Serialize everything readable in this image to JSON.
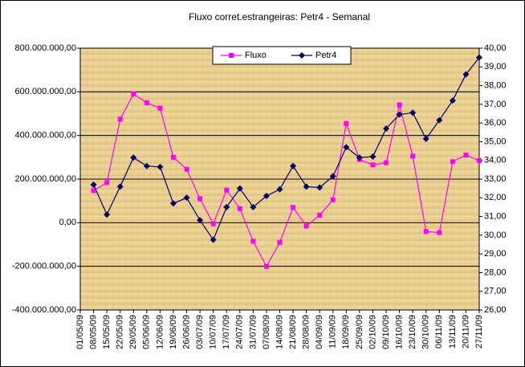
{
  "chart_data": {
    "type": "line",
    "title": "Fluxo corret.estrangeiras: Petr4 - Semanal",
    "categories": [
      "01/05/09",
      "08/05/09",
      "15/05/09",
      "22/05/09",
      "29/05/09",
      "05/06/09",
      "12/06/09",
      "19/06/09",
      "26/06/09",
      "03/07/09",
      "10/07/09",
      "17/07/09",
      "24/07/09",
      "31/07/09",
      "07/08/09",
      "14/08/09",
      "21/08/09",
      "28/08/09",
      "04/09/09",
      "11/09/09",
      "18/09/09",
      "25/09/09",
      "02/10/09",
      "09/10/09",
      "16/10/09",
      "23/10/09",
      "30/10/09",
      "06/11/09",
      "13/11/09",
      "20/11/09",
      "27/11/09"
    ],
    "series": [
      {
        "name": "Fluxo",
        "color": "#ff00ff",
        "marker": "square",
        "values": [
          null,
          147000000,
          184000000,
          475000000,
          590000000,
          550000000,
          525000000,
          300000000,
          245000000,
          110000000,
          -5000000,
          150000000,
          65000000,
          -85000000,
          -200000000,
          -90000000,
          70000000,
          -15000000,
          35000000,
          105000000,
          455000000,
          290000000,
          265000000,
          275000000,
          540000000,
          305000000,
          -40000000,
          -45000000,
          280000000,
          310000000,
          285000000
        ]
      },
      {
        "name": "Petr4",
        "color": "#000066",
        "marker": "diamond",
        "axis": "y2",
        "values": [
          null,
          32.7,
          31.1,
          32.6,
          34.15,
          33.7,
          33.65,
          31.7,
          32.0,
          30.8,
          29.75,
          31.5,
          32.5,
          31.5,
          32.1,
          32.45,
          33.7,
          32.6,
          32.55,
          33.15,
          34.7,
          34.15,
          34.2,
          35.7,
          36.45,
          36.55,
          35.15,
          36.15,
          37.2,
          38.6,
          39.5
        ]
      }
    ],
    "ylim": [
      -400000000,
      800000000
    ],
    "yticks": [
      {
        "value": -400000000,
        "label": "-400.000.000,00"
      },
      {
        "value": -200000000,
        "label": "-200.000.000,00"
      },
      {
        "value": 0,
        "label": "0,00"
      },
      {
        "value": 200000000,
        "label": "200.000.000,00"
      },
      {
        "value": 400000000,
        "label": "400.000.000,00"
      },
      {
        "value": 600000000,
        "label": "600.000.000,00"
      },
      {
        "value": 800000000,
        "label": "800.000.000,00"
      }
    ],
    "y2lim": [
      26,
      40
    ],
    "y2ticks": [
      {
        "value": 26,
        "label": "26,00"
      },
      {
        "value": 27,
        "label": "27,00"
      },
      {
        "value": 28,
        "label": "28,00"
      },
      {
        "value": 29,
        "label": "29,00"
      },
      {
        "value": 30,
        "label": "30,00"
      },
      {
        "value": 31,
        "label": "31,00"
      },
      {
        "value": 32,
        "label": "32,00"
      },
      {
        "value": 33,
        "label": "33,00"
      },
      {
        "value": 34,
        "label": "34,00"
      },
      {
        "value": 35,
        "label": "35,00"
      },
      {
        "value": 36,
        "label": "36,00"
      },
      {
        "value": 37,
        "label": "37,00"
      },
      {
        "value": 38,
        "label": "38,00"
      },
      {
        "value": 39,
        "label": "39,00"
      },
      {
        "value": 40,
        "label": "40,00"
      }
    ],
    "grid": true,
    "legend": "top"
  }
}
